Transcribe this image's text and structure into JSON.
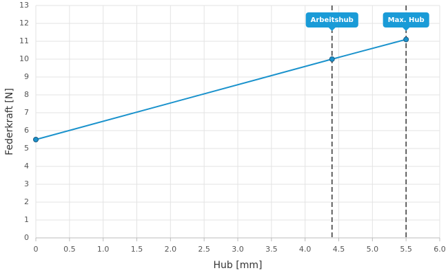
{
  "chart_data": {
    "type": "line",
    "x_label": "Hub [mm]",
    "y_label": "Federkraft [N]",
    "x": [
      0,
      4.4,
      5.5
    ],
    "series": [
      {
        "name": "Federkraft",
        "color": "#1a92cc",
        "values": [
          5.5,
          10,
          11.1
        ]
      }
    ],
    "xlim": [
      0,
      6
    ],
    "xticks": [
      0,
      0.5,
      {
        "value": 1,
        "label": "1.0"
      },
      1.5,
      {
        "value": 2,
        "label": "2.0"
      },
      2.5,
      {
        "value": 3,
        "label": "3.0"
      },
      3.5,
      {
        "value": 4,
        "label": "4.0"
      },
      4.5,
      {
        "value": 5,
        "label": "5.0"
      },
      5.5,
      {
        "value": 6,
        "label": "6.0"
      }
    ],
    "ylim": [
      0,
      13
    ],
    "yticks": [
      0,
      1,
      2,
      3,
      4,
      5,
      6,
      7,
      8,
      9,
      10,
      11,
      12,
      13
    ],
    "grid": true,
    "annotations": [
      {
        "x": 4.4,
        "label": "Arbeitshub"
      },
      {
        "x": 5.5,
        "label": "Max. Hub"
      }
    ]
  }
}
